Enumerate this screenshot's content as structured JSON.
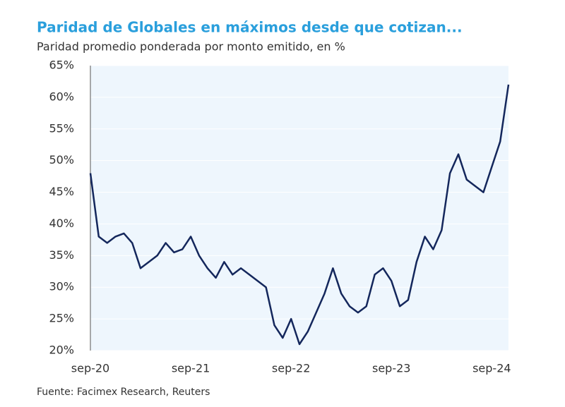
{
  "chart_data": {
    "type": "line",
    "title": "Paridad de Globales en máximos desde que cotizan...",
    "subtitle": "Paridad promedio ponderada por monto emitido, en %",
    "source": "Fuente: Facimex Research, Reuters",
    "categories": [
      "sep-20",
      null,
      null,
      null,
      null,
      null,
      null,
      null,
      null,
      null,
      null,
      null,
      "sep-21",
      null,
      null,
      null,
      null,
      null,
      null,
      null,
      null,
      null,
      null,
      null,
      "sep-22",
      null,
      null,
      null,
      null,
      null,
      null,
      null,
      null,
      null,
      null,
      null,
      "sep-23",
      null,
      null,
      null,
      null,
      null,
      null,
      null,
      null,
      null,
      null,
      null,
      "sep-24",
      null,
      null
    ],
    "series": [
      {
        "name": "Paridad",
        "color": "#14275c",
        "values": [
          48,
          38,
          37,
          38,
          38.5,
          37,
          33,
          34,
          35,
          37,
          35.5,
          36,
          38,
          35,
          33,
          31.5,
          34,
          32,
          33,
          32,
          31,
          30,
          24,
          22,
          25,
          21,
          23,
          26,
          29,
          33,
          29,
          27,
          26,
          27,
          32,
          33,
          31,
          27,
          28,
          34,
          38,
          36,
          39,
          48,
          51,
          47,
          46,
          45,
          49,
          53,
          62
        ]
      }
    ],
    "ylim": [
      20,
      65
    ],
    "yticks": [
      {
        "value": 20,
        "label": "20%"
      },
      {
        "value": 25,
        "label": "25%"
      },
      {
        "value": 30,
        "label": "30%"
      },
      {
        "value": 35,
        "label": "35%"
      },
      {
        "value": 40,
        "label": "40%"
      },
      {
        "value": 45,
        "label": "45%"
      },
      {
        "value": 50,
        "label": "50%"
      },
      {
        "value": 55,
        "label": "55%"
      },
      {
        "value": 60,
        "label": "60%"
      },
      {
        "value": 65,
        "label": "65%"
      }
    ],
    "grid": true
  }
}
